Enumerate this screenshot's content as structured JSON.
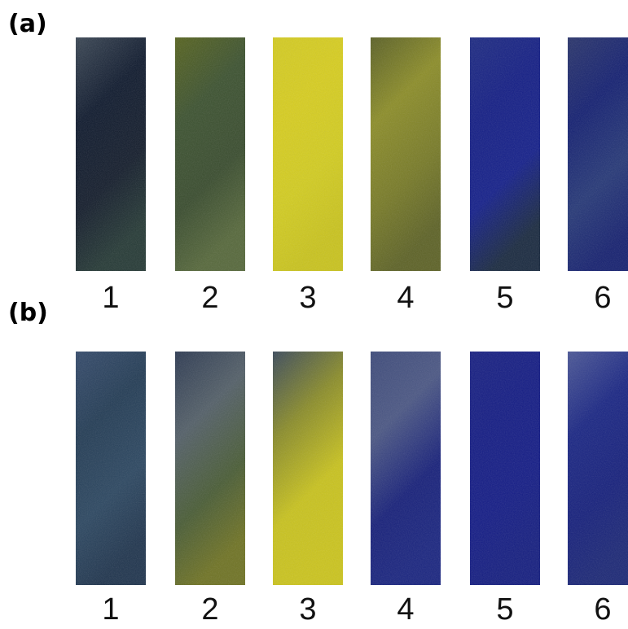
{
  "panels": [
    {
      "label": "(a)",
      "strips": [
        {
          "number": "1",
          "colors": [
            "#3a4654",
            "#0f1a2e",
            "#141d2c",
            "#263a36"
          ]
        },
        {
          "number": "2",
          "colors": [
            "#56631e",
            "#3c5230",
            "#394c2e",
            "#56683b"
          ]
        },
        {
          "number": "3",
          "colors": [
            "#d3cb21",
            "#d7cd1f",
            "#d2cc20",
            "#c9c31d"
          ]
        },
        {
          "number": "4",
          "colors": [
            "#5a6025",
            "#8c8d28",
            "#777a27",
            "#5d6226"
          ]
        },
        {
          "number": "5",
          "colors": [
            "#1d2a82",
            "#141e85",
            "#15208a",
            "#1a2a40"
          ]
        },
        {
          "number": "6",
          "colors": [
            "#29346b",
            "#142072",
            "#263877",
            "#162170"
          ]
        }
      ]
    },
    {
      "label": "(b)",
      "strips": [
        {
          "number": "1",
          "colors": [
            "#344a6b",
            "#233c55",
            "#2c4761",
            "#20354e"
          ]
        },
        {
          "number": "2",
          "colors": [
            "#2d3a52",
            "#535f68",
            "#495c35",
            "#6f7324"
          ]
        },
        {
          "number": "3",
          "colors": [
            "#3b4a5a",
            "#8a8c2a",
            "#c8c21e",
            "#cbc41d"
          ]
        },
        {
          "number": "4",
          "colors": [
            "#3d4a7a",
            "#4b5784",
            "#17207a",
            "#1a2580"
          ]
        },
        {
          "number": "5",
          "colors": [
            "#182082",
            "#141c84",
            "#141c86",
            "#151e80"
          ]
        },
        {
          "number": "6",
          "colors": [
            "#4a5696",
            "#1a2684",
            "#16207c",
            "#1c2876"
          ]
        }
      ]
    }
  ]
}
